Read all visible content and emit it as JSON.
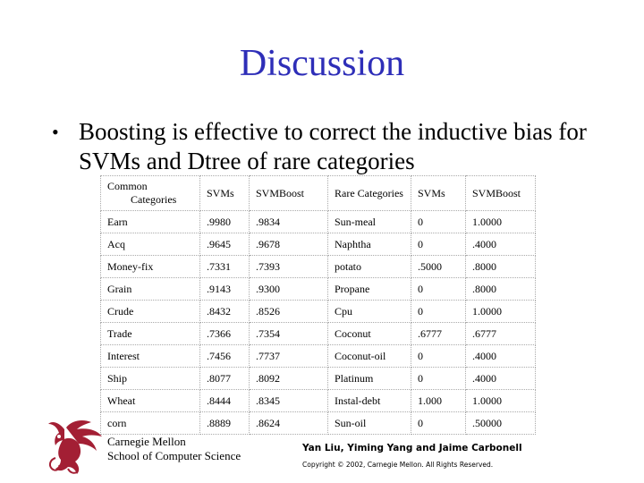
{
  "slide": {
    "title": "Discussion",
    "bullet_symbol": "•",
    "bullet_text": "Boosting is effective to correct the inductive bias for SVMs and Dtree of rare categories"
  },
  "table": {
    "header": [
      "Common\nCategories",
      "SVMs",
      "SVMBoost",
      "Rare Categories",
      "SVMs",
      "SVMBoost"
    ],
    "rows": [
      [
        "Earn",
        ".9980",
        ".9834",
        "Sun-meal",
        "0",
        "1.0000"
      ],
      [
        "Acq",
        ".9645",
        ".9678",
        "Naphtha",
        "0",
        ".4000"
      ],
      [
        "Money-fix",
        ".7331",
        ".7393",
        "potato",
        ".5000",
        ".8000"
      ],
      [
        "Grain",
        ".9143",
        ".9300",
        "Propane",
        "0",
        ".8000"
      ],
      [
        "Crude",
        ".8432",
        ".8526",
        "Cpu",
        "0",
        "1.0000"
      ],
      [
        "Trade",
        ".7366",
        ".7354",
        "Coconut",
        ".6777",
        ".6777"
      ],
      [
        "Interest",
        ".7456",
        ".7737",
        "Coconut-oil",
        "0",
        ".4000"
      ],
      [
        "Ship",
        ".8077",
        ".8092",
        "Platinum",
        "0",
        ".4000"
      ],
      [
        "Wheat",
        ".8444",
        ".8345",
        "Instal-debt",
        "1.000",
        "1.0000"
      ],
      [
        "corn",
        ".8889",
        ".8624",
        "Sun-oil",
        "0",
        ".50000"
      ]
    ]
  },
  "footer": {
    "institution_line1": "Carnegie Mellon",
    "institution_line2": "School of Computer Science",
    "authors": "Yan Liu, Yiming Yang and Jaime Carbonell",
    "copyright": "Copyright © 2002, Carnegie Mellon. All Rights Reserved.",
    "logo_icon": "cmu-griffin-icon",
    "logo_color": "#a31f34"
  }
}
